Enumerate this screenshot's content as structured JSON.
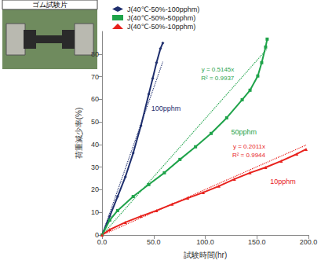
{
  "chart_data": {
    "type": "line",
    "inset_title": "ゴム試験片",
    "x_label": "試験時間(hr)",
    "y_label": "荷重減少率(%)",
    "xlim": [
      0,
      200
    ],
    "xticks": [
      {
        "value": 0,
        "label": "0.0"
      },
      {
        "value": 50,
        "label": "50.0"
      },
      {
        "value": 100,
        "label": "100.0"
      },
      {
        "value": 150,
        "label": "150.0"
      },
      {
        "value": 200,
        "label": "200.0"
      }
    ],
    "ylim": [
      0,
      90
    ],
    "yticks": [
      0,
      10,
      20,
      30,
      40,
      50,
      60,
      70,
      80
    ],
    "grid": false,
    "legend": "top",
    "series": [
      {
        "name": "J(40℃-50%-100pphm)",
        "label": "100pphm",
        "color": "#1f2f6e",
        "marker": "diamond",
        "x": [
          0,
          7.5,
          15.1,
          22.6,
          30.2,
          37.7,
          45.3,
          49.1,
          52.8,
          56.6,
          58.9
        ],
        "values": [
          0,
          8.3,
          17.0,
          25.7,
          36.2,
          48.3,
          62.3,
          69.2,
          76.2,
          82.4,
          84.9
        ],
        "trend": {
          "slope": 1.3,
          "line_style": "dotted"
        }
      },
      {
        "name": "J(40℃-50%-50pphm)",
        "label": "50pphm",
        "color": "#1fa34a",
        "marker": "square",
        "x": [
          0,
          7.5,
          15.1,
          30.2,
          45.3,
          60.4,
          75.5,
          90.6,
          105.7,
          120.8,
          135.8,
          143.4,
          150.9,
          154.7,
          158.5,
          160.0
        ],
        "values": [
          0,
          6.6,
          10.8,
          17.0,
          22.3,
          27.5,
          33.4,
          39.0,
          44.9,
          51.8,
          59.8,
          64.0,
          70.3,
          76.2,
          83.1,
          86.6
        ],
        "trend": {
          "slope": 0.5145,
          "line_style": "dotted",
          "label": [
            "y = 0.5145x",
            "R² = 0.9937"
          ]
        }
      },
      {
        "name": "J(40℃-50%-10pphm)",
        "label": "10pphm",
        "color": "#e8211c",
        "marker": "triangle",
        "x": [
          0,
          7.5,
          22.6,
          37.7,
          52.8,
          67.9,
          83.0,
          98.1,
          113.2,
          128.3,
          143.4,
          158.5,
          173.6,
          188.7,
          197.7
        ],
        "values": [
          0,
          2.4,
          5.6,
          8.3,
          10.8,
          13.6,
          16.3,
          18.8,
          21.6,
          24.7,
          27.5,
          29.9,
          32.7,
          35.8,
          37.9
        ],
        "trend": {
          "slope": 0.2011,
          "line_style": "dotted",
          "label": [
            "y = 0.2011x",
            "R² = 0.9944"
          ]
        }
      }
    ]
  }
}
